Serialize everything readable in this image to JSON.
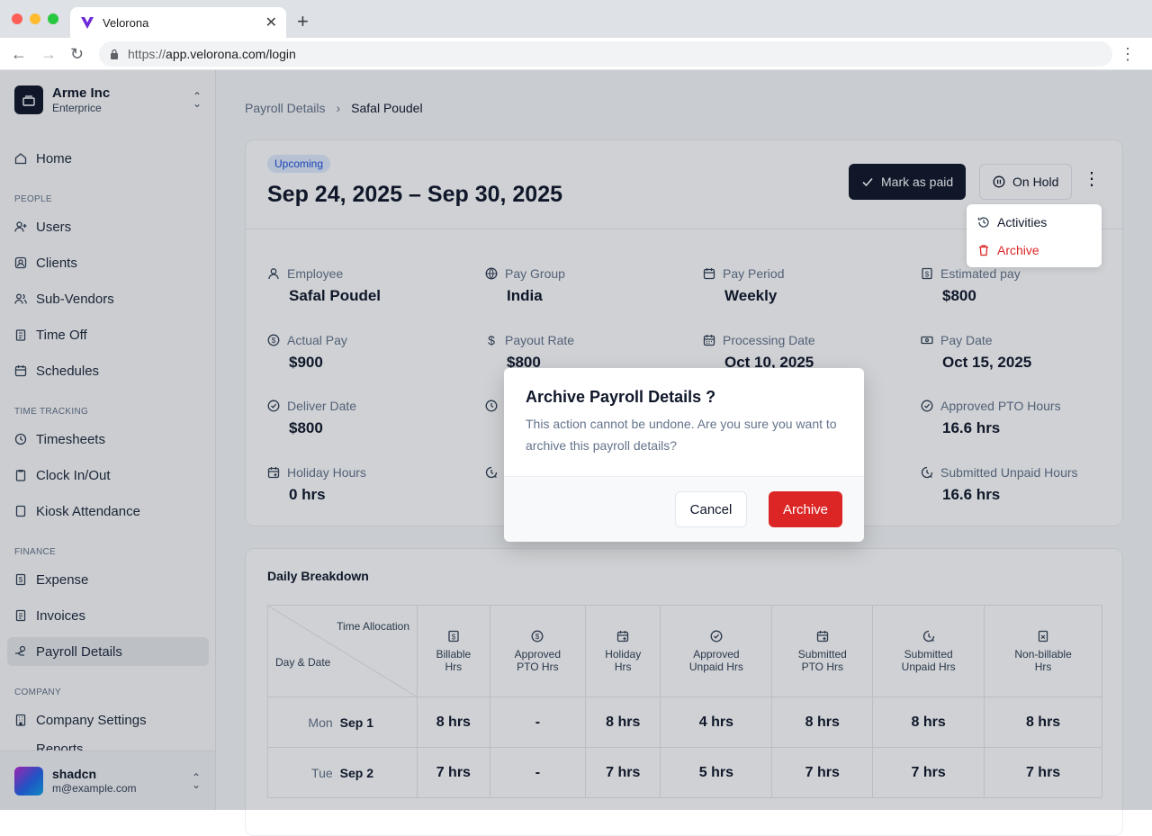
{
  "browser": {
    "tab_title": "Velorona",
    "url_scheme": "https://",
    "url_host": "app.velorona.com/login",
    "colors": {
      "close": "#ff5f57",
      "minimize": "#febc2e",
      "maximize": "#28c840"
    }
  },
  "sidebar": {
    "org_name": "Arme Inc",
    "org_plan": "Enterprice",
    "home": "Home",
    "sections": {
      "people": "PEOPLE",
      "time_tracking": "TIME TRACKING",
      "finance": "FINANCE",
      "company": "COMPANY"
    },
    "people": [
      "Users",
      "Clients",
      "Sub-Vendors",
      "Time Off",
      "Schedules"
    ],
    "time_tracking": [
      "Timesheets",
      "Clock In/Out",
      "Kiosk Attendance"
    ],
    "finance": [
      "Expense",
      "Invoices",
      "Payroll Details"
    ],
    "company": [
      "Company Settings",
      "Reports"
    ],
    "user": {
      "name": "shadcn",
      "email": "m@example.com"
    }
  },
  "breadcrumb": {
    "parent": "Payroll Details",
    "current": "Safal Poudel"
  },
  "header": {
    "status": "Upcoming",
    "period": "Sep 24, 2025 – Sep 30, 2025",
    "mark_paid": "Mark as paid",
    "on_hold": "On Hold"
  },
  "details": [
    {
      "label": "Employee",
      "value": "Safal Poudel",
      "icon": "user-icon"
    },
    {
      "label": "Pay Group",
      "value": "India",
      "icon": "globe-icon"
    },
    {
      "label": "Pay Period",
      "value": "Weekly",
      "icon": "calendar-icon"
    },
    {
      "label": "Estimated pay",
      "value": "$800",
      "icon": "dollar-doc-icon"
    },
    {
      "label": "Actual Pay",
      "value": "$900",
      "icon": "dollar-circle-icon"
    },
    {
      "label": "Payout Rate",
      "value": "$800",
      "icon": "dollar-icon"
    },
    {
      "label": "Processing Date",
      "value": "Oct 10, 2025",
      "icon": "calendar-grid-icon"
    },
    {
      "label": "Pay Date",
      "value": "Oct 15, 2025",
      "icon": "banknote-icon"
    },
    {
      "label": "Deliver Date",
      "value": "$800",
      "icon": "check-circle-icon"
    },
    {
      "label": "",
      "value": "",
      "icon": "clock-icon"
    },
    {
      "label": "",
      "value": "",
      "icon": ""
    },
    {
      "label": "Approved PTO Hours",
      "value": "16.6 hrs",
      "icon": "check-circle-icon"
    },
    {
      "label": "Holiday Hours",
      "value": "0 hrs",
      "icon": "calendar-plus-icon"
    },
    {
      "label": "",
      "value": "",
      "icon": "clock-arrow-icon"
    },
    {
      "label": "",
      "value": "",
      "icon": ""
    },
    {
      "label": "Submitted Unpaid Hours",
      "value": "16.6 hrs",
      "icon": "clock-arrow-icon"
    }
  ],
  "breakdown": {
    "title": "Daily Breakdown",
    "corner_top": "Time Allocation",
    "corner_bottom": "Day & Date",
    "columns": [
      {
        "l1": "Billable",
        "l2": "Hrs",
        "icon": "dollar-doc-icon"
      },
      {
        "l1": "Approved",
        "l2": "PTO Hrs",
        "icon": "dollar-circle-icon"
      },
      {
        "l1": "Holiday",
        "l2": "Hrs",
        "icon": "calendar-plus-icon"
      },
      {
        "l1": "Approved",
        "l2": "Unpaid Hrs",
        "icon": "check-circle-icon"
      },
      {
        "l1": "Submitted",
        "l2": "PTO Hrs",
        "icon": "calendar-plus-icon"
      },
      {
        "l1": "Submitted",
        "l2": "Unpaid Hrs",
        "icon": "clock-arrow-icon"
      },
      {
        "l1": "Non-billable",
        "l2": "Hrs",
        "icon": "file-x-icon"
      }
    ],
    "rows": [
      {
        "day": "Mon",
        "date": "Sep 1",
        "cells": [
          "8 hrs",
          "-",
          "8 hrs",
          "4 hrs",
          "8 hrs",
          "8 hrs",
          "8 hrs"
        ]
      },
      {
        "day": "Tue",
        "date": "Sep 2",
        "cells": [
          "7 hrs",
          "-",
          "7 hrs",
          "5 hrs",
          "7 hrs",
          "7 hrs",
          "7 hrs"
        ]
      }
    ]
  },
  "dropdown": {
    "activities": "Activities",
    "archive": "Archive"
  },
  "modal": {
    "title": "Archive Payroll Details ?",
    "description": "This action cannot be undone. Are you sure you want to archive this payroll details?",
    "cancel": "Cancel",
    "confirm": "Archive",
    "confirm_color": "#dc2626"
  }
}
